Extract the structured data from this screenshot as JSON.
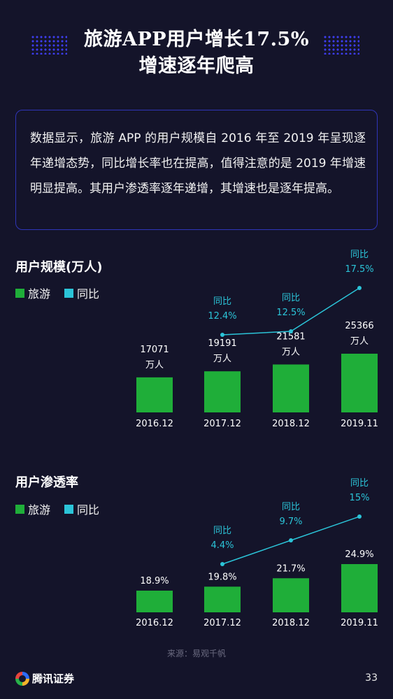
{
  "title": {
    "line1": "旅游APP用户增长17.5%",
    "line2": "增速逐年爬高"
  },
  "summary": "数据显示，旅游 APP 的用户规模自 2016 年至 2019 年呈现逐年递增态势，同比增长率也在提高，值得注意的是 2019 年增速明显提高。其用户渗透率逐年递增，其增速也是逐年提高。",
  "colors": {
    "bar": "#1fae39",
    "line": "#2bc4d8",
    "accent": "#2f35b8",
    "background": "#14142a"
  },
  "chart_data": [
    {
      "type": "bar",
      "title": "用户规模(万人)",
      "legend": [
        "旅游",
        "同比"
      ],
      "categories": [
        "2016.12",
        "2017.12",
        "2018.12",
        "2019.11"
      ],
      "series": [
        {
          "name": "旅游",
          "values": [
            17071,
            19191,
            21581,
            25366
          ],
          "labels": [
            "17071",
            "19191",
            "21581",
            "25366"
          ],
          "unit": "万人"
        },
        {
          "name": "同比",
          "type": "line",
          "values": [
            null,
            12.4,
            12.5,
            17.5
          ],
          "labels": [
            "",
            "12.4%",
            "12.5%",
            "17.5%"
          ],
          "prefix": "同比"
        }
      ]
    },
    {
      "type": "bar",
      "title": "用户渗透率",
      "legend": [
        "旅游",
        "同比"
      ],
      "categories": [
        "2016.12",
        "2017.12",
        "2018.12",
        "2019.11"
      ],
      "series": [
        {
          "name": "旅游",
          "values": [
            18.9,
            19.8,
            21.7,
            24.9
          ],
          "labels": [
            "18.9%",
            "19.8%",
            "21.7%",
            "24.9%"
          ],
          "unit": ""
        },
        {
          "name": "同比",
          "type": "line",
          "values": [
            null,
            4.4,
            9.7,
            15
          ],
          "labels": [
            "",
            "4.4%",
            "9.7%",
            "15%"
          ],
          "prefix": "同比"
        }
      ]
    }
  ],
  "source": "来源：易观千帆",
  "footer": {
    "logo_text": "腾讯证券",
    "logo_icon": "tencent-securities-logo-icon",
    "page_number": "33"
  }
}
